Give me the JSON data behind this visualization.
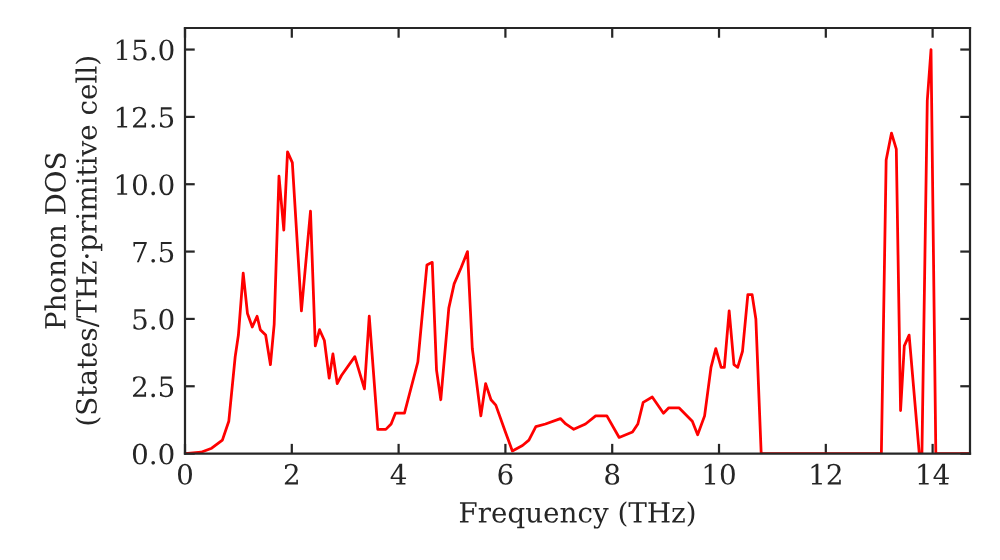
{
  "chart_data": {
    "type": "line",
    "xlabel": "Frequency (THz)",
    "ylabel": "Phonon DOS\n(States/THz·primitive cell)",
    "xlim": [
      0,
      14.7
    ],
    "ylim": [
      0,
      15.8
    ],
    "xticks": [
      0,
      2,
      4,
      6,
      8,
      10,
      12,
      14
    ],
    "yticks": [
      {
        "value": 0,
        "label": "0.0"
      },
      {
        "value": 2.5,
        "label": "2.5"
      },
      {
        "value": 5,
        "label": "5.0"
      },
      {
        "value": 7.5,
        "label": "7.5"
      },
      {
        "value": 10,
        "label": "10.0"
      },
      {
        "value": 12.5,
        "label": "12.5"
      },
      {
        "value": 15,
        "label": "15.0"
      }
    ],
    "grid": false,
    "legend": false,
    "series": [
      {
        "color": "#ff0000",
        "x": [
          0,
          0.3,
          0.5,
          0.7,
          0.82,
          0.94,
          1.0,
          1.09,
          1.17,
          1.26,
          1.35,
          1.41,
          1.51,
          1.6,
          1.67,
          1.76,
          1.85,
          1.92,
          2.01,
          2.18,
          2.35,
          2.44,
          2.52,
          2.61,
          2.7,
          2.77,
          2.85,
          2.93,
          3.18,
          3.36,
          3.45,
          3.61,
          3.76,
          3.86,
          3.94,
          4.11,
          4.36,
          4.53,
          4.63,
          4.71,
          4.79,
          4.94,
          5.04,
          5.17,
          5.29,
          5.38,
          5.54,
          5.63,
          5.73,
          5.82,
          6.0,
          6.13,
          6.32,
          6.44,
          6.57,
          6.75,
          7.03,
          7.13,
          7.28,
          7.5,
          7.69,
          7.9,
          8.13,
          8.38,
          8.48,
          8.58,
          8.75,
          8.96,
          9.06,
          9.25,
          9.5,
          9.6,
          9.73,
          9.85,
          9.94,
          10.04,
          10.1,
          10.19,
          10.28,
          10.35,
          10.44,
          10.54,
          10.62,
          10.69,
          10.79,
          13.04,
          13.13,
          13.23,
          13.32,
          13.4,
          13.47,
          13.56,
          13.75,
          13.8,
          13.9,
          13.97,
          14.06,
          14.68
        ],
        "values": [
          0,
          0.05,
          0.2,
          0.5,
          1.2,
          3.6,
          4.4,
          6.7,
          5.2,
          4.7,
          5.1,
          4.6,
          4.4,
          3.3,
          4.8,
          10.3,
          8.3,
          11.2,
          10.8,
          5.3,
          9.0,
          4.0,
          4.6,
          4.2,
          2.8,
          3.7,
          2.6,
          2.9,
          3.6,
          2.4,
          5.1,
          0.9,
          0.9,
          1.1,
          1.5,
          1.5,
          3.4,
          7.0,
          7.1,
          3.1,
          2.0,
          5.4,
          6.3,
          6.9,
          7.5,
          3.9,
          1.4,
          2.6,
          2.0,
          1.8,
          0.8,
          0.1,
          0.3,
          0.5,
          1.0,
          1.1,
          1.3,
          1.1,
          0.9,
          1.1,
          1.4,
          1.4,
          0.6,
          0.8,
          1.1,
          1.9,
          2.1,
          1.5,
          1.7,
          1.7,
          1.2,
          0.7,
          1.4,
          3.2,
          3.9,
          3.2,
          3.2,
          5.3,
          3.3,
          3.2,
          3.8,
          5.9,
          5.9,
          5.0,
          0,
          0,
          10.9,
          11.9,
          11.3,
          1.6,
          4.0,
          4.4,
          0,
          0,
          13.1,
          15.0,
          0,
          0
        ]
      }
    ]
  }
}
